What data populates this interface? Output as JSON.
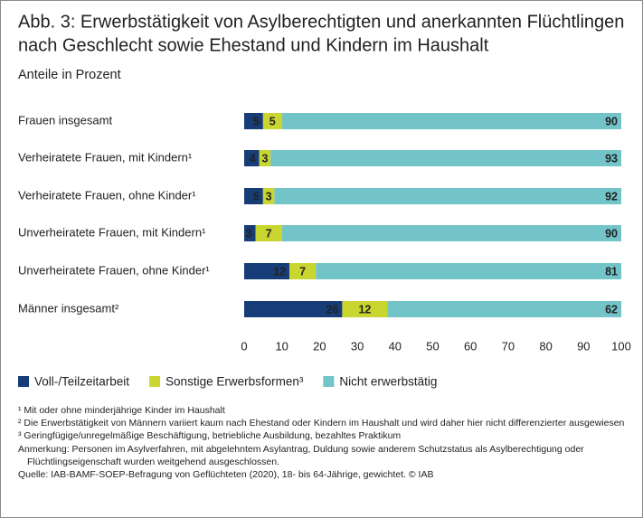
{
  "chart_data": {
    "type": "stacked-barh",
    "title": [
      "Abb. 3: Erwerbstätigkeit von Asylberechtigten und anerkannten Flüchtlingen",
      "nach Geschlecht sowie Ehestand und Kindern im Haushalt"
    ],
    "subtitle": "Anteile in Prozent",
    "categories": [
      "Frauen insgesamt",
      "Verheiratete Frauen, mit Kindern¹",
      "Verheiratete Frauen, ohne Kinder¹",
      "Unverheiratete Frauen, mit Kindern¹",
      "Unverheiratete Frauen, ohne Kinder¹",
      "Männer insgesamt²"
    ],
    "series": [
      {
        "name": "Voll-/Teilzeitarbeit",
        "color": "#173d78",
        "values": [
          5,
          4,
          5,
          3,
          12,
          26
        ]
      },
      {
        "name": "Sonstige Erwerbsformen³",
        "color": "#c9d630",
        "values": [
          5,
          3,
          3,
          7,
          7,
          12
        ]
      },
      {
        "name": "Nicht erwerbstätig",
        "color": "#72c4c9",
        "values": [
          90,
          93,
          92,
          90,
          81,
          62
        ]
      }
    ],
    "xlim": [
      0,
      100
    ],
    "xticks": [
      0,
      10,
      20,
      30,
      40,
      50,
      60,
      70,
      80,
      90,
      100
    ],
    "notes": [
      "¹ Mit oder ohne minderjährige Kinder im Haushalt",
      "² Die Erwerbstätigkeit von Männern variiert kaum nach Ehestand oder Kindern im Haushalt und wird daher hier nicht differenzierter ausgewiesen",
      "³ Geringfügige/unregelmäßige Beschäftigung, betriebliche Ausbildung, bezahltes Praktikum",
      "Anmerkung: Personen im Asylverfahren, mit abgelehntem Asylantrag, Duldung sowie anderem Schutzstatus als Asylberechtigung oder Flüchtlingseigenschaft wurden weitgehend ausgeschlossen.",
      "Quelle: IAB-BAMF-SOEP-Befragung von Geflüchteten (2020), 18- bis 64-Jährige, gewichtet. © IAB"
    ]
  }
}
